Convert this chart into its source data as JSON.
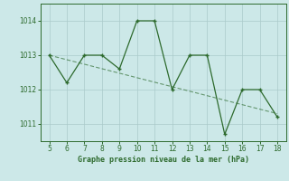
{
  "x": [
    5,
    6,
    7,
    8,
    9,
    10,
    11,
    12,
    13,
    14,
    15,
    16,
    17,
    18
  ],
  "y": [
    1013.0,
    1012.2,
    1013.0,
    1013.0,
    1012.6,
    1014.0,
    1014.0,
    1012.0,
    1013.0,
    1013.0,
    1010.7,
    1012.0,
    1012.0,
    1011.2
  ],
  "trend_x": [
    5,
    18
  ],
  "trend_y": [
    1013.0,
    1011.3
  ],
  "line_color": "#2d6a2d",
  "bg_color": "#cce8e8",
  "grid_color": "#aacaca",
  "xlabel": "Graphe pression niveau de la mer (hPa)",
  "xlim": [
    4.5,
    18.5
  ],
  "ylim": [
    1010.5,
    1014.5
  ],
  "yticks": [
    1011,
    1012,
    1013,
    1014
  ],
  "xticks": [
    5,
    6,
    7,
    8,
    9,
    10,
    11,
    12,
    13,
    14,
    15,
    16,
    17,
    18
  ]
}
